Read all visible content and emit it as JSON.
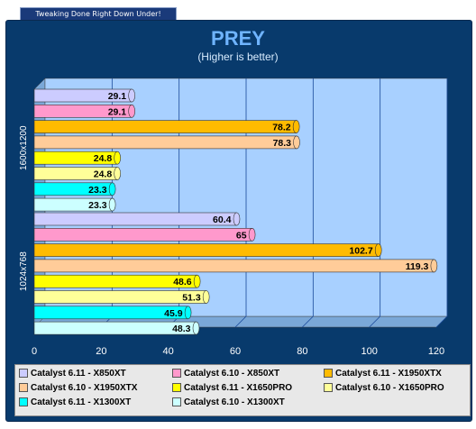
{
  "banner": "Tweaking Done Right Down Under!",
  "chart_data": {
    "type": "bar",
    "orientation": "horizontal",
    "title": "PREY",
    "subtitle": "(Higher is better)",
    "categories": [
      "1600x1200",
      "1024x768"
    ],
    "xlim": [
      0,
      120
    ],
    "ticks": [
      0,
      20,
      40,
      60,
      80,
      100,
      120
    ],
    "grid": true,
    "legend_position": "bottom",
    "series": [
      {
        "name": "Catalyst 6.11 - X850XT",
        "color": "#ccccff",
        "values": [
          29.1,
          60.4
        ]
      },
      {
        "name": "Catalyst 6.10 - X850XT",
        "color": "#ff99cc",
        "values": [
          29.1,
          65
        ]
      },
      {
        "name": "Catalyst 6.11 - X1950XTX",
        "color": "#ffbb00",
        "values": [
          78.2,
          102.7
        ]
      },
      {
        "name": "Catalyst 6.10 - X1950XTX",
        "color": "#ffcc99",
        "values": [
          78.3,
          119.3
        ]
      },
      {
        "name": "Catalyst 6.11 - X1650PRO",
        "color": "#ffff00",
        "values": [
          24.8,
          48.6
        ]
      },
      {
        "name": "Catalyst 6.10 - X1650PRO",
        "color": "#ffff99",
        "values": [
          24.8,
          51.3
        ]
      },
      {
        "name": "Catalyst 6.11 - X1300XT",
        "color": "#00ffff",
        "values": [
          23.3,
          45.9
        ]
      },
      {
        "name": "Catalyst 6.10 - X1300XT",
        "color": "#ccffff",
        "values": [
          23.3,
          48.3
        ]
      }
    ]
  }
}
